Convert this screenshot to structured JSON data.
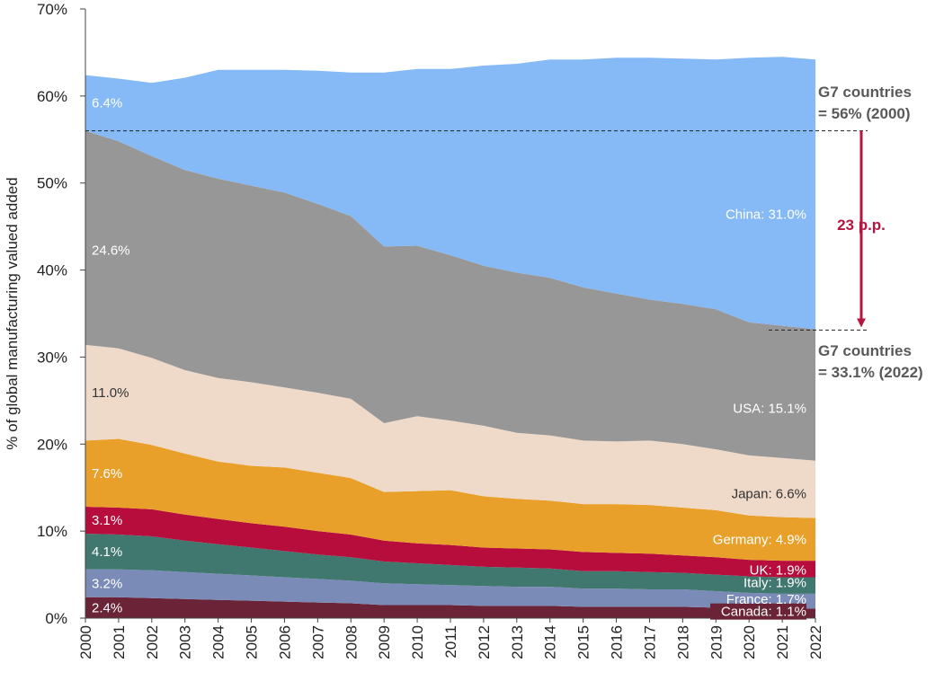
{
  "chart_data": {
    "type": "area",
    "stacked": true,
    "x": [
      2000,
      2001,
      2002,
      2003,
      2004,
      2005,
      2006,
      2007,
      2008,
      2009,
      2010,
      2011,
      2012,
      2013,
      2014,
      2015,
      2016,
      2017,
      2018,
      2019,
      2020,
      2021,
      2022
    ],
    "ylabel": "% of global manufacturing valued added",
    "ylim": [
      0,
      70
    ],
    "yticks": [
      "0%",
      "10%",
      "20%",
      "30%",
      "40%",
      "50%",
      "60%",
      "70%"
    ],
    "series": [
      {
        "name": "Canada",
        "color": "#6b2437",
        "values": [
          2.4,
          2.4,
          2.3,
          2.2,
          2.1,
          2.0,
          1.9,
          1.8,
          1.7,
          1.5,
          1.5,
          1.5,
          1.4,
          1.4,
          1.4,
          1.3,
          1.3,
          1.3,
          1.3,
          1.2,
          1.1,
          1.1,
          1.1
        ],
        "start_label": "2.4%",
        "end_label": "Canada: 1.1%"
      },
      {
        "name": "France",
        "color": "#7b8bb8",
        "values": [
          3.2,
          3.2,
          3.2,
          3.1,
          3.0,
          2.9,
          2.8,
          2.7,
          2.6,
          2.5,
          2.4,
          2.3,
          2.3,
          2.2,
          2.2,
          2.1,
          2.1,
          2.0,
          2.0,
          1.9,
          1.8,
          1.7,
          1.7
        ],
        "start_label": "3.2%",
        "end_label": "France: 1.7%"
      },
      {
        "name": "Italy",
        "color": "#40776f",
        "values": [
          4.1,
          4.0,
          3.9,
          3.6,
          3.4,
          3.2,
          3.0,
          2.8,
          2.7,
          2.5,
          2.4,
          2.3,
          2.2,
          2.2,
          2.1,
          2.0,
          2.0,
          2.0,
          1.9,
          1.9,
          1.9,
          1.9,
          1.9
        ],
        "start_label": "4.1%",
        "end_label": "Italy: 1.9%"
      },
      {
        "name": "UK",
        "color": "#b70d3c",
        "values": [
          3.1,
          3.1,
          3.1,
          3.0,
          2.9,
          2.8,
          2.8,
          2.7,
          2.6,
          2.4,
          2.3,
          2.3,
          2.2,
          2.2,
          2.2,
          2.2,
          2.1,
          2.1,
          2.0,
          2.0,
          1.9,
          1.9,
          1.9
        ],
        "start_label": "3.1%",
        "end_label": "UK: 1.9%"
      },
      {
        "name": "Germany",
        "color": "#e8a02a",
        "values": [
          7.6,
          7.9,
          7.4,
          7.0,
          6.6,
          6.6,
          6.8,
          6.7,
          6.5,
          5.6,
          6.0,
          6.3,
          5.9,
          5.7,
          5.6,
          5.5,
          5.6,
          5.6,
          5.5,
          5.4,
          5.1,
          5.0,
          4.9
        ],
        "start_label": "7.6%",
        "end_label": "Germany: 4.9%"
      },
      {
        "name": "Japan",
        "color": "#efd9c8",
        "values": [
          11.0,
          10.4,
          10.0,
          9.6,
          9.6,
          9.6,
          9.2,
          9.2,
          9.1,
          7.9,
          8.6,
          8.0,
          8.1,
          7.6,
          7.5,
          7.3,
          7.2,
          7.4,
          7.3,
          7.0,
          6.9,
          6.8,
          6.6
        ],
        "start_label": "11.0%",
        "end_label": "Japan: 6.6%"
      },
      {
        "name": "USA",
        "color": "#979797",
        "values": [
          24.6,
          23.8,
          23.2,
          23.0,
          22.9,
          22.6,
          22.4,
          21.7,
          21.0,
          20.3,
          19.6,
          19.0,
          18.4,
          18.4,
          18.1,
          17.6,
          17.0,
          16.2,
          16.1,
          16.1,
          15.3,
          15.2,
          15.1
        ],
        "start_label": "24.6%",
        "end_label": "USA: 15.1%"
      },
      {
        "name": "China",
        "color": "#85baf6",
        "values": [
          6.4,
          7.2,
          8.4,
          10.6,
          12.5,
          13.3,
          14.1,
          15.3,
          16.5,
          20.0,
          20.3,
          21.4,
          23.0,
          24.0,
          25.1,
          26.2,
          27.1,
          27.8,
          28.2,
          28.7,
          30.4,
          30.9,
          31.0
        ],
        "start_label": "6.4%",
        "end_label": "China: 31.0%"
      }
    ],
    "annotations": {
      "g7_2000_value": 56.0,
      "g7_2000_line1": "G7 countries",
      "g7_2000_line2": "= 56% (2000)",
      "g7_2022_value": 33.1,
      "g7_2022_line1": "G7 countries",
      "g7_2022_line2": "= 33.1% (2022)",
      "gap_label": "23 p.p."
    },
    "grid": false,
    "legend": "none"
  }
}
